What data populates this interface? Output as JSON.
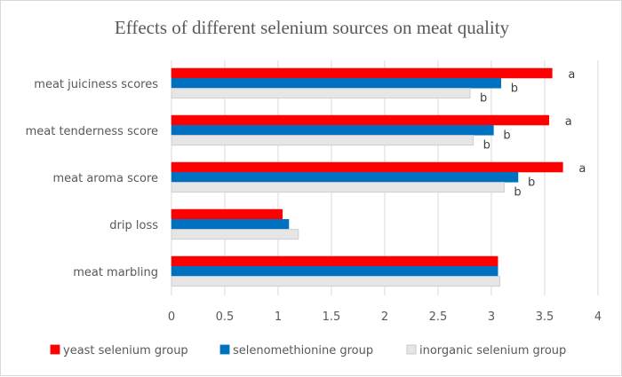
{
  "chart_data": {
    "type": "bar",
    "orientation": "horizontal",
    "title": "Effects of different selenium sources on meat quality",
    "categories": [
      "meat juiciness scores",
      "meat tenderness score",
      "meat aroma score",
      "drip loss",
      "meat marbling"
    ],
    "series": [
      {
        "name": "yeast selenium group",
        "color": "#ff0000",
        "values": [
          3.57,
          3.54,
          3.67,
          1.04,
          3.06
        ],
        "labels": [
          "a",
          "a",
          "a",
          "",
          ""
        ]
      },
      {
        "name": "selenomethionine group",
        "color": "#0070c0",
        "values": [
          3.09,
          3.02,
          3.25,
          1.1,
          3.06
        ],
        "labels": [
          "b",
          "b",
          "b",
          "",
          ""
        ]
      },
      {
        "name": "inorganic selenium group",
        "color": "#e7e6e6",
        "values": [
          2.8,
          2.83,
          3.12,
          1.19,
          3.08
        ],
        "labels": [
          "b",
          "b",
          "b",
          "",
          ""
        ]
      }
    ],
    "xlim": [
      0,
      4
    ],
    "xticks": [
      "0",
      "0.5",
      "1",
      "1.5",
      "2",
      "2.5",
      "3",
      "3.5",
      "4"
    ],
    "grid": true,
    "legend": "bottom"
  }
}
